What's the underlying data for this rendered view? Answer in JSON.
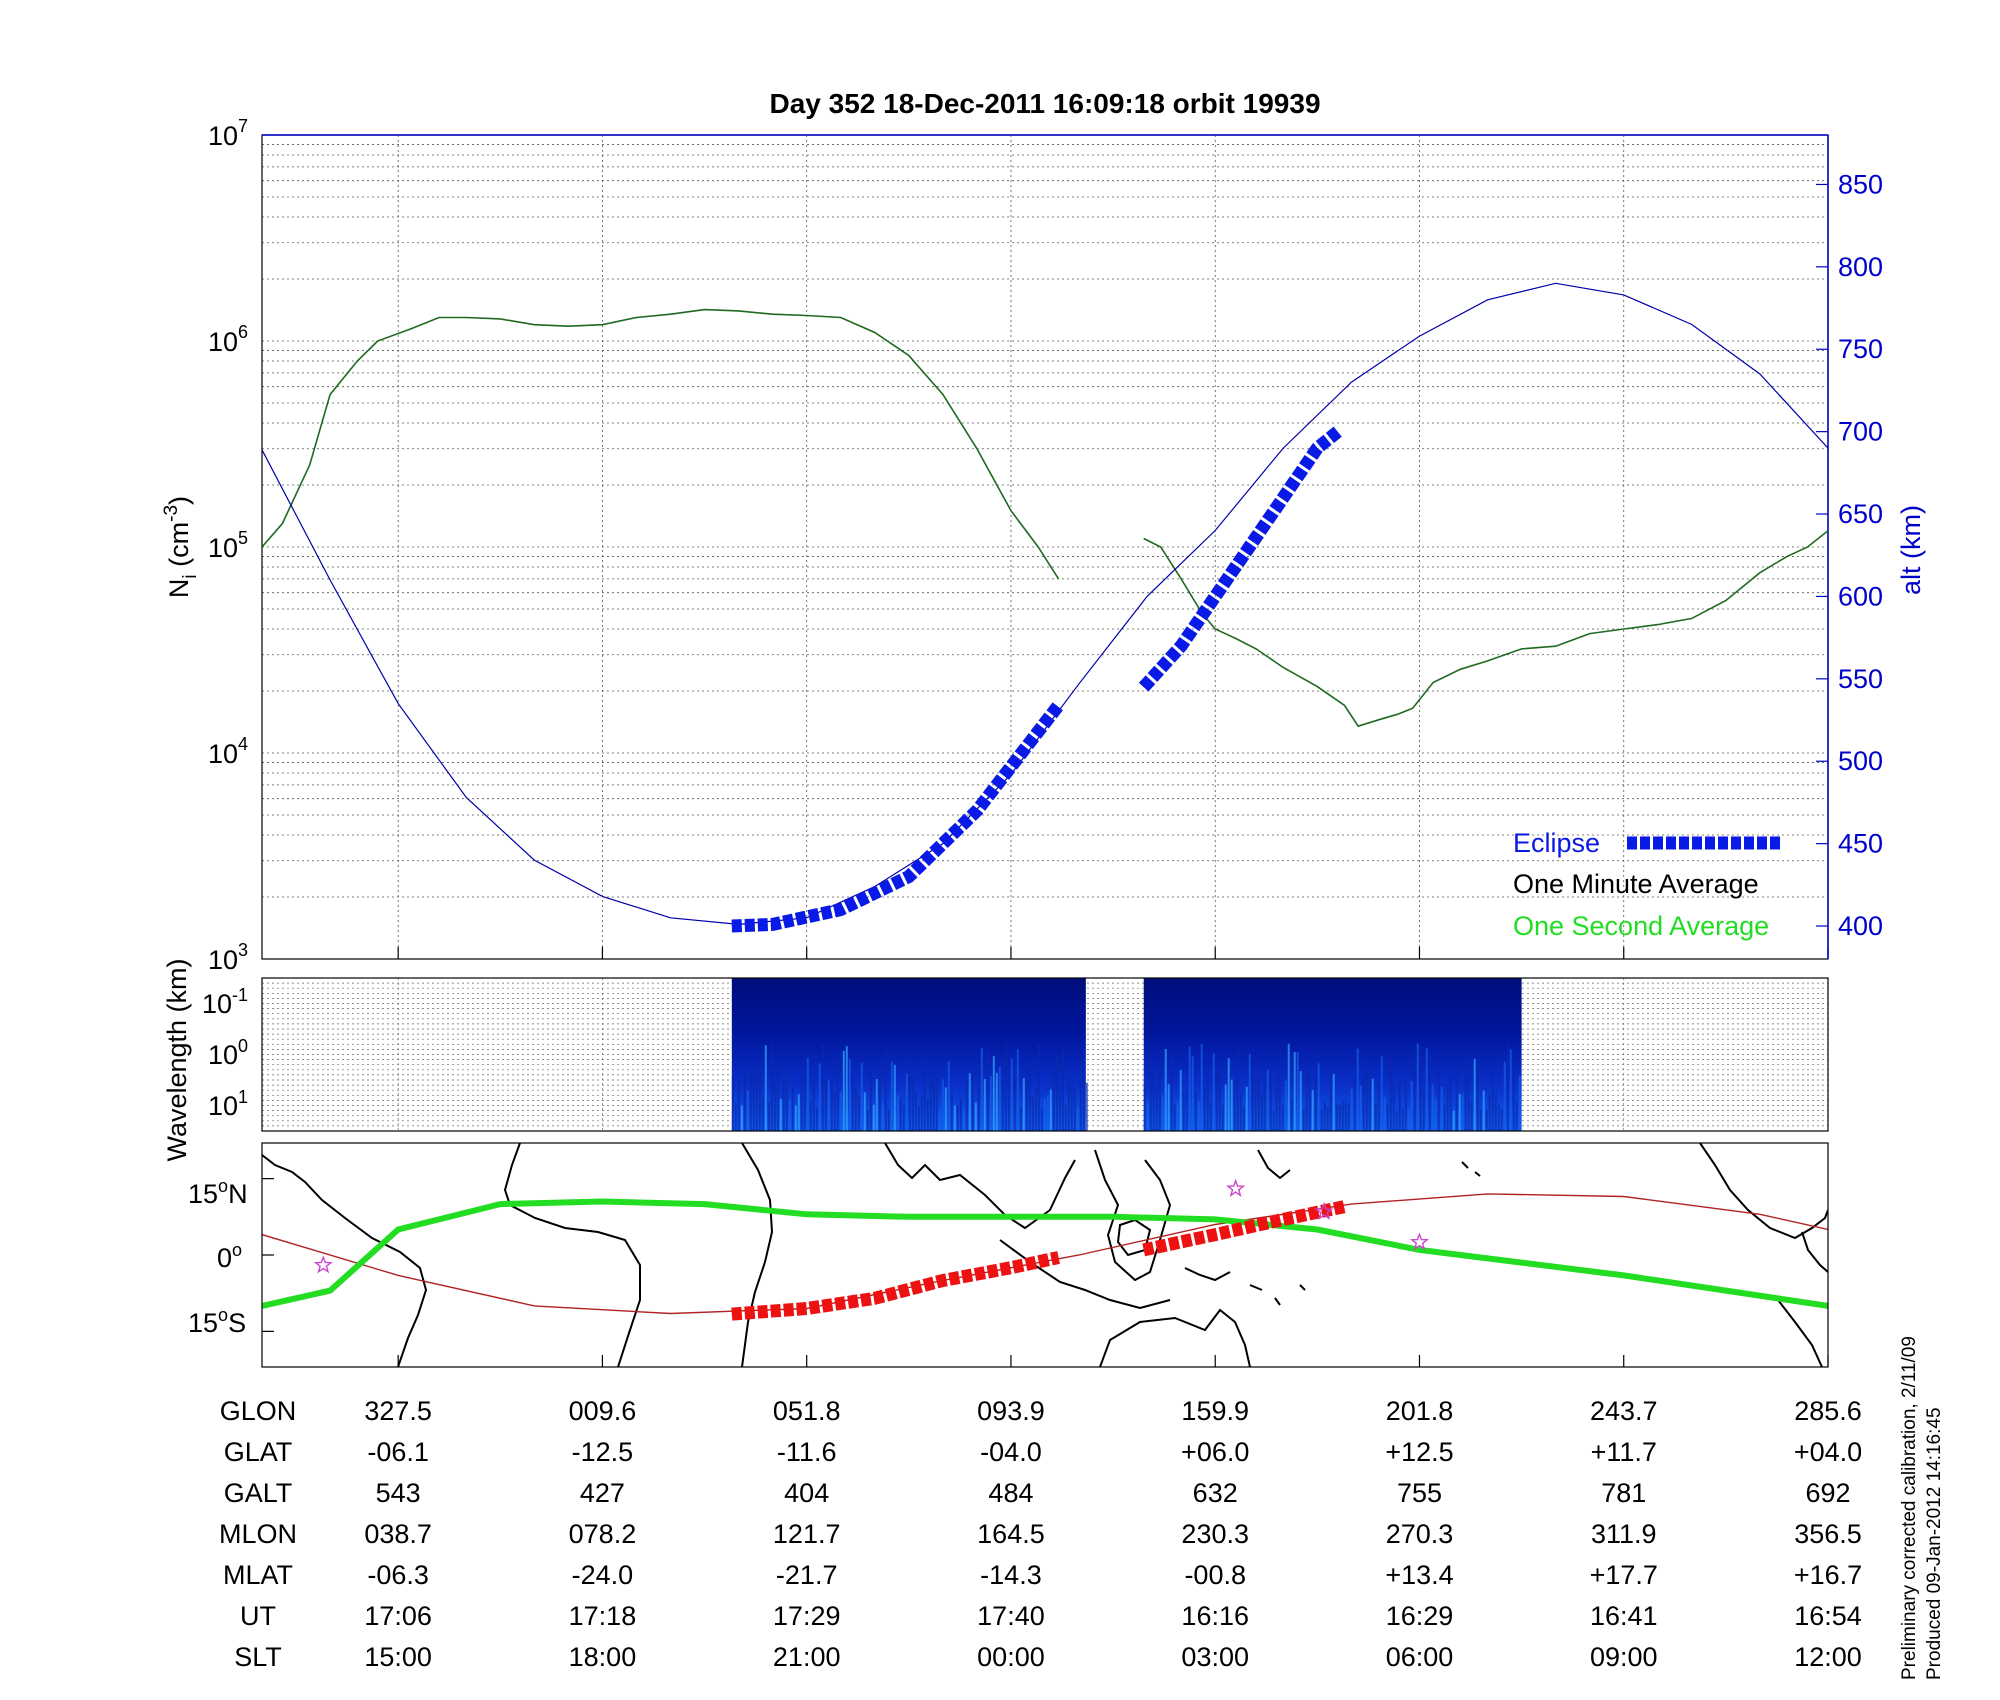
{
  "title": "Day 352  18-Dec-2011 16:09:18   orbit 19939",
  "top_panel": {
    "ylabel_main": "N",
    "ylabel_sub": "i",
    "ylabel_unit_open": " (cm",
    "ylabel_unit_sup": "-3",
    "ylabel_unit_close": ")",
    "y2label": "alt (km)",
    "y_ticks": [
      {
        "base": "10",
        "exp": "7"
      },
      {
        "base": "10",
        "exp": "6"
      },
      {
        "base": "10",
        "exp": "5"
      },
      {
        "base": "10",
        "exp": "4"
      },
      {
        "base": "10",
        "exp": "3"
      }
    ],
    "y2_ticks": [
      "850",
      "800",
      "750",
      "700",
      "650",
      "600",
      "550",
      "500",
      "450",
      "400"
    ],
    "legend": {
      "eclipse": "Eclipse",
      "minute": "One Minute Average",
      "second": "One Second Average"
    }
  },
  "middle_panel": {
    "ylabel": "Wavelength (km)",
    "y_ticks": [
      {
        "base": "10",
        "exp": "-1"
      },
      {
        "base": "10",
        "exp": "0"
      },
      {
        "base": "10",
        "exp": "1"
      }
    ]
  },
  "map_panel": {
    "lat_ticks": [
      {
        "num": "15",
        "sup": "o",
        "dir": "N"
      },
      {
        "num": "0",
        "sup": "o",
        "dir": ""
      },
      {
        "num": "15",
        "sup": "o",
        "dir": "S"
      }
    ]
  },
  "table": {
    "rows": [
      {
        "label": "GLON",
        "values": [
          "327.5",
          "009.6",
          "051.8",
          "093.9",
          "159.9",
          "201.8",
          "243.7",
          "285.6"
        ]
      },
      {
        "label": "GLAT",
        "values": [
          "-06.1",
          "-12.5",
          "-11.6",
          "-04.0",
          "+06.0",
          "+12.5",
          "+11.7",
          "+04.0"
        ]
      },
      {
        "label": "GALT",
        "values": [
          "543",
          "427",
          "404",
          "484",
          "632",
          "755",
          "781",
          "692"
        ]
      },
      {
        "label": "MLON",
        "values": [
          "038.7",
          "078.2",
          "121.7",
          "164.5",
          "230.3",
          "270.3",
          "311.9",
          "356.5"
        ]
      },
      {
        "label": "MLAT",
        "values": [
          "-06.3",
          "-24.0",
          "-21.7",
          "-14.3",
          "-00.8",
          "+13.4",
          "+17.7",
          "+16.7"
        ]
      },
      {
        "label": "UT",
        "values": [
          "17:06",
          "17:18",
          "17:29",
          "17:40",
          "16:16",
          "16:29",
          "16:41",
          "16:54"
        ]
      },
      {
        "label": "SLT",
        "values": [
          "15:00",
          "18:00",
          "21:00",
          "00:00",
          "03:00",
          "06:00",
          "09:00",
          "12:00"
        ]
      }
    ]
  },
  "footnote": {
    "line1": "Preliminary corrected calibration, 2/11/09",
    "line2": "Produced 09-Jan-2012 14:16:45"
  },
  "colors": {
    "density": "#1f6a1f",
    "altitude": "#0000aa",
    "eclipse": "#0a1ae6",
    "ground_track": "#b22222",
    "magnetic_equator": "#22dd22",
    "track_eclipse": "#ee1111",
    "star": "#cc44cc",
    "right_axis": "#0000cc"
  },
  "chart_data": [
    {
      "type": "line",
      "panel": "top",
      "x_quantity": "SLT (h)",
      "xlim": [
        13.0,
        12.0
      ],
      "y_scale": "log",
      "ylim": [
        1000,
        10000000
      ],
      "y2lim": [
        380,
        880
      ],
      "grid": true,
      "legend_position": "bottom-right",
      "series": [
        {
          "key": "density",
          "segments": [
            [
              [
                13.0,
                100000
              ],
              [
                13.3,
                130000
              ],
              [
                13.7,
                250000
              ],
              [
                14.0,
                550000
              ],
              [
                14.4,
                800000
              ],
              [
                14.7,
                1000000
              ],
              [
                15.2,
                1150000
              ],
              [
                15.6,
                1300000
              ],
              [
                16.0,
                1300000
              ],
              [
                16.5,
                1280000
              ],
              [
                17.0,
                1200000
              ],
              [
                17.5,
                1180000
              ],
              [
                18.0,
                1200000
              ],
              [
                18.5,
                1300000
              ],
              [
                19.0,
                1350000
              ],
              [
                19.5,
                1420000
              ],
              [
                20.0,
                1400000
              ],
              [
                20.5,
                1350000
              ],
              [
                21.0,
                1330000
              ],
              [
                21.5,
                1300000
              ],
              [
                22.0,
                1100000
              ],
              [
                22.5,
                850000
              ],
              [
                23.0,
                550000
              ],
              [
                23.5,
                300000
              ],
              [
                24.0,
                150000
              ],
              [
                24.4,
                100000
              ],
              [
                24.7,
                70000
              ]
            ],
            [
              [
                25.95,
                110000
              ],
              [
                26.2,
                100000
              ],
              [
                26.5,
                70000
              ],
              [
                26.8,
                48000
              ],
              [
                27.0,
                40000
              ],
              [
                27.3,
                36000
              ],
              [
                27.6,
                32000
              ],
              [
                28.0,
                26000
              ],
              [
                28.5,
                21000
              ],
              [
                28.9,
                17000
              ],
              [
                29.1,
                13500
              ],
              [
                29.4,
                14500
              ],
              [
                29.7,
                15500
              ],
              [
                29.9,
                16500
              ],
              [
                30.2,
                22000
              ],
              [
                30.6,
                25500
              ],
              [
                31.0,
                28000
              ],
              [
                31.5,
                32000
              ],
              [
                32.0,
                33000
              ],
              [
                32.5,
                38000
              ],
              [
                33.0,
                40000
              ],
              [
                33.5,
                42000
              ],
              [
                34.0,
                45000
              ],
              [
                34.5,
                55000
              ],
              [
                35.0,
                75000
              ],
              [
                35.4,
                90000
              ],
              [
                35.7,
                100000
              ],
              [
                36.0,
                120000
              ]
            ]
          ]
        },
        {
          "key": "altitude",
          "axis": "right",
          "points": [
            [
              13.0,
              689
            ],
            [
              14.0,
              610
            ],
            [
              15.0,
              535
            ],
            [
              16.0,
              478
            ],
            [
              17.0,
              440
            ],
            [
              18.0,
              418
            ],
            [
              19.0,
              405
            ],
            [
              20.0,
              401
            ],
            [
              21.0,
              405
            ],
            [
              22.0,
              424
            ],
            [
              23.0,
              450
            ],
            [
              24.0,
              492
            ],
            [
              25.0,
              547
            ],
            [
              26.0,
              600
            ],
            [
              27.0,
              640
            ],
            [
              28.0,
              690
            ],
            [
              29.0,
              730
            ],
            [
              30.0,
              758
            ],
            [
              31.0,
              780
            ],
            [
              32.0,
              790
            ],
            [
              33.0,
              783
            ],
            [
              34.0,
              765
            ],
            [
              35.0,
              735
            ],
            [
              36.0,
              690
            ]
          ]
        },
        {
          "key": "eclipse",
          "axis": "right",
          "segments": [
            [
              [
                19.9,
                400
              ],
              [
                20.5,
                401
              ],
              [
                21.5,
                410
              ],
              [
                22.5,
                430
              ],
              [
                23.5,
                470
              ],
              [
                24.7,
                534
              ]
            ],
            [
              [
                25.95,
                545
              ],
              [
                26.5,
                570
              ],
              [
                27.0,
                600
              ],
              [
                27.5,
                630
              ],
              [
                28.0,
                660
              ],
              [
                28.5,
                690
              ],
              [
                28.8,
                700
              ]
            ]
          ]
        }
      ]
    },
    {
      "type": "heatmap",
      "panel": "middle",
      "ylabel": "Wavelength (km)",
      "active_segments_slt": [
        [
          19.9,
          25.1
        ],
        [
          25.95,
          31.5
        ]
      ]
    },
    {
      "type": "line",
      "panel": "map",
      "y_quantity": "latitude (deg)",
      "ylim": [
        -22,
        22
      ],
      "series": [
        {
          "key": "magnetic_equator",
          "points": [
            [
              13.0,
              -10
            ],
            [
              14.0,
              -7
            ],
            [
              15.0,
              5
            ],
            [
              16.5,
              10
            ],
            [
              18.0,
              10.5
            ],
            [
              19.5,
              10
            ],
            [
              21.0,
              8
            ],
            [
              22.5,
              7.5
            ],
            [
              24.0,
              7.5
            ],
            [
              25.5,
              7.5
            ],
            [
              27.0,
              7
            ],
            [
              28.5,
              5
            ],
            [
              30.0,
              1
            ],
            [
              31.5,
              -1.5
            ],
            [
              33.0,
              -4
            ],
            [
              34.5,
              -7
            ],
            [
              36.0,
              -10
            ]
          ]
        },
        {
          "key": "ground_track",
          "points": [
            [
              13.0,
              4
            ],
            [
              15.0,
              -4
            ],
            [
              17.0,
              -10
            ],
            [
              19.0,
              -11.5
            ],
            [
              21.0,
              -10.5
            ],
            [
              23.0,
              -5
            ],
            [
              25.0,
              0
            ],
            [
              27.0,
              6
            ],
            [
              29.0,
              10
            ],
            [
              31.0,
              12
            ],
            [
              33.0,
              11.5
            ],
            [
              35.0,
              8
            ],
            [
              36.0,
              5
            ]
          ]
        },
        {
          "key": "track_eclipse",
          "segments": [
            [
              [
                19.9,
                -11.6
              ],
              [
                21.0,
                -10.5
              ],
              [
                22.0,
                -8.5
              ],
              [
                23.0,
                -5
              ],
              [
                24.0,
                -2.5
              ],
              [
                24.7,
                -0.5
              ]
            ],
            [
              [
                25.95,
                1
              ],
              [
                27.0,
                4
              ],
              [
                28.0,
                7
              ],
              [
                28.9,
                9.5
              ]
            ]
          ]
        },
        {
          "key": "stars",
          "points": [
            [
              13.9,
              -2
            ],
            [
              27.3,
              13
            ],
            [
              28.6,
              8.5
            ],
            [
              30.0,
              2.5
            ]
          ]
        }
      ]
    }
  ]
}
